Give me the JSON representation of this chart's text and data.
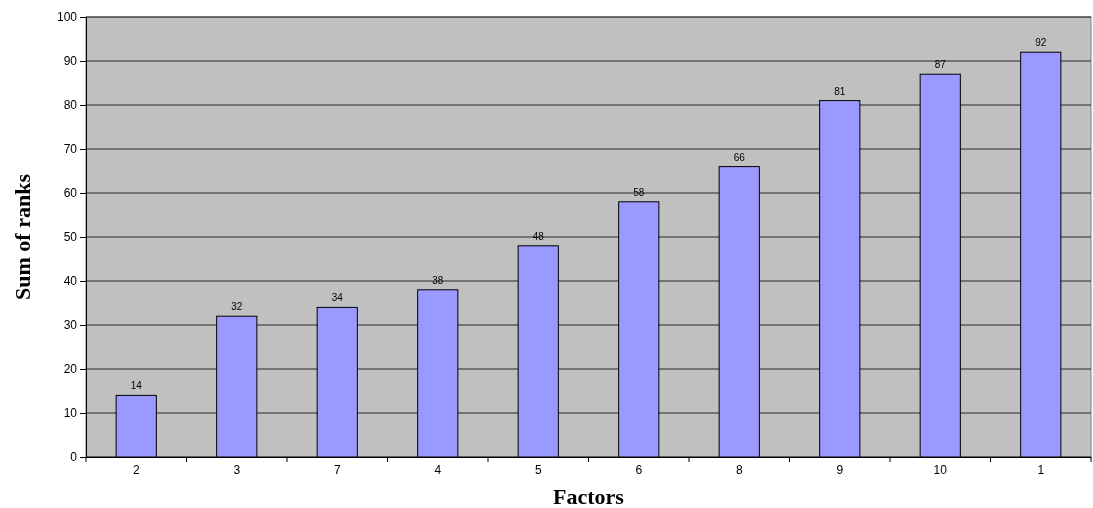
{
  "chart_data": {
    "type": "bar",
    "xlabel": "Factors",
    "ylabel": "Sum of ranks",
    "categories": [
      "2",
      "3",
      "7",
      "4",
      "5",
      "6",
      "8",
      "9",
      "10",
      "1"
    ],
    "values": [
      14,
      32,
      34,
      38,
      48,
      58,
      66,
      81,
      87,
      92
    ],
    "color": "#9999ff",
    "ylim": [
      0,
      100
    ],
    "yticks": [
      0,
      10,
      20,
      30,
      40,
      50,
      60,
      70,
      80,
      90,
      100
    ],
    "grid": "y",
    "data_labels": true
  }
}
